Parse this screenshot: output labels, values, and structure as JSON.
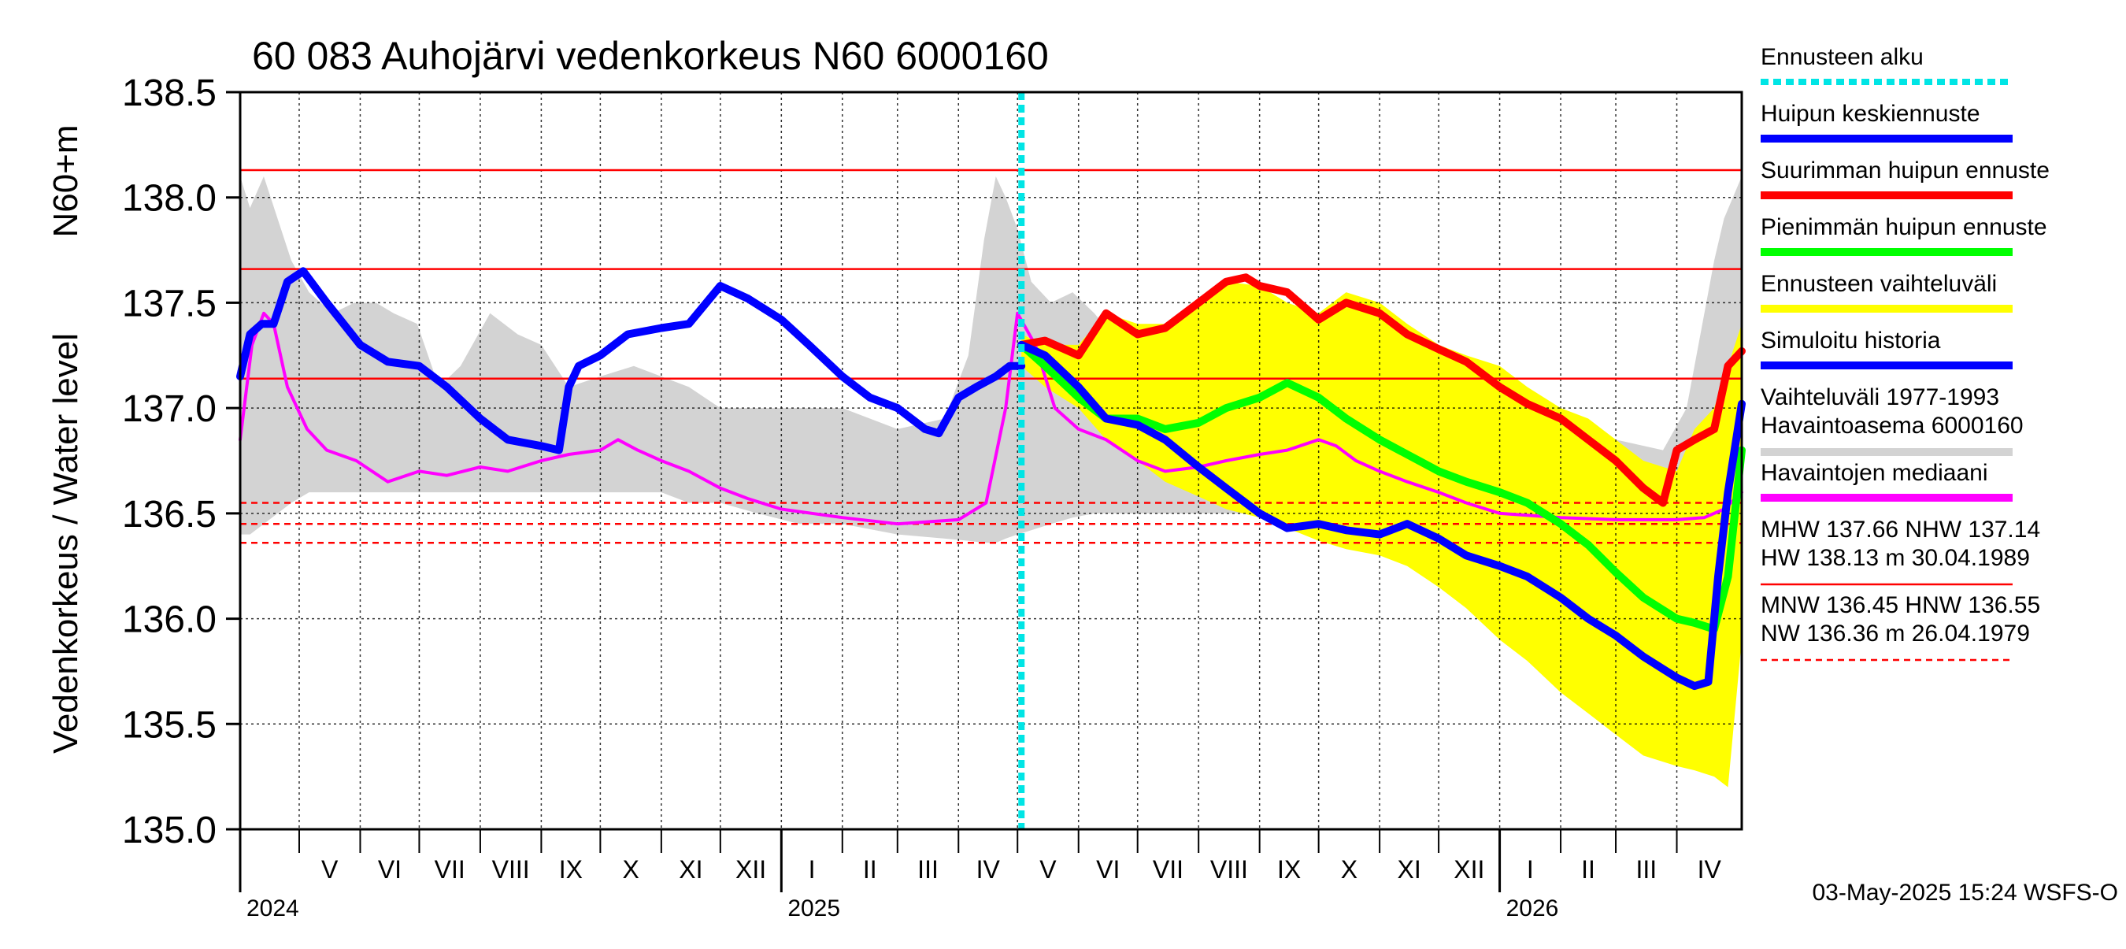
{
  "chart_data": {
    "type": "line",
    "title": "60 083 Auhojärvi vedenkorkeus N60 6000160",
    "ylabel_top": "N60+m",
    "ylabel": "Vedenkorkeus / Water level",
    "ylim": [
      135.0,
      138.5
    ],
    "yticks": [
      "135.0",
      "135.5",
      "136.0",
      "136.5",
      "137.0",
      "137.5",
      "138.0",
      "138.5"
    ],
    "grid": true,
    "legend_position": "right",
    "xlim": [
      "2024-04-01",
      "2026-05-04"
    ],
    "forecast_start": "2025-05-03",
    "months": [
      {
        "label": "V",
        "start": "2024-05-01"
      },
      {
        "label": "VI",
        "start": "2024-06-01"
      },
      {
        "label": "VII",
        "start": "2024-07-01"
      },
      {
        "label": "VIII",
        "start": "2024-08-01"
      },
      {
        "label": "IX",
        "start": "2024-09-01"
      },
      {
        "label": "X",
        "start": "2024-10-01"
      },
      {
        "label": "XI",
        "start": "2024-11-01"
      },
      {
        "label": "XII",
        "start": "2024-12-01"
      },
      {
        "label": "I",
        "start": "2025-01-01"
      },
      {
        "label": "II",
        "start": "2025-02-01"
      },
      {
        "label": "III",
        "start": "2025-03-01"
      },
      {
        "label": "IV",
        "start": "2025-04-01"
      },
      {
        "label": "V",
        "start": "2025-05-01"
      },
      {
        "label": "VI",
        "start": "2025-06-01"
      },
      {
        "label": "VII",
        "start": "2025-07-01"
      },
      {
        "label": "VIII",
        "start": "2025-08-01"
      },
      {
        "label": "IX",
        "start": "2025-09-01"
      },
      {
        "label": "X",
        "start": "2025-10-01"
      },
      {
        "label": "XI",
        "start": "2025-11-01"
      },
      {
        "label": "XII",
        "start": "2025-12-01"
      },
      {
        "label": "I",
        "start": "2026-01-01"
      },
      {
        "label": "II",
        "start": "2026-02-01"
      },
      {
        "label": "III",
        "start": "2026-03-01"
      },
      {
        "label": "IV",
        "start": "2026-04-01"
      }
    ],
    "years": [
      {
        "label": "2024",
        "date": "2024-04-01"
      },
      {
        "label": "2025",
        "date": "2025-01-01"
      },
      {
        "label": "2026",
        "date": "2026-01-01"
      }
    ],
    "reference_lines": [
      {
        "value": 138.13,
        "style": "solid",
        "color": "#ff0000"
      },
      {
        "value": 137.66,
        "style": "solid",
        "color": "#ff0000"
      },
      {
        "value": 137.14,
        "style": "solid",
        "color": "#ff0000"
      },
      {
        "value": 136.55,
        "style": "dashed",
        "color": "#ff0000"
      },
      {
        "value": 136.45,
        "style": "dashed",
        "color": "#ff0000"
      },
      {
        "value": 136.36,
        "style": "dashed",
        "color": "#ff0000"
      }
    ],
    "bands": [
      {
        "name": "Vaihteluväli 1977-1993",
        "color": "#d3d3d3",
        "x": [
          "2024-04-01",
          "2024-04-06",
          "2024-04-13",
          "2024-04-20",
          "2024-04-27",
          "2024-05-06",
          "2024-05-18",
          "2024-05-29",
          "2024-06-09",
          "2024-06-18",
          "2024-06-30",
          "2024-07-11",
          "2024-07-22",
          "2024-08-06",
          "2024-08-20",
          "2024-09-01",
          "2024-09-15",
          "2024-10-01",
          "2024-10-18",
          "2024-11-01",
          "2024-11-15",
          "2024-12-01",
          "2024-12-20",
          "2025-01-10",
          "2025-02-01",
          "2025-03-01",
          "2025-03-25",
          "2025-04-06",
          "2025-04-14",
          "2025-04-20",
          "2025-04-25",
          "2025-05-01",
          "2025-05-08",
          "2025-05-18",
          "2025-05-29",
          "2025-06-09",
          "2025-06-18",
          "2025-06-30",
          "2025-07-11",
          "2025-07-22",
          "2025-08-06",
          "2025-08-20",
          "2025-09-01",
          "2025-09-15",
          "2025-10-01",
          "2025-10-18",
          "2025-11-01",
          "2025-11-15",
          "2025-12-01",
          "2025-12-20",
          "2026-01-10",
          "2026-02-01",
          "2026-03-01",
          "2026-03-25",
          "2026-04-06",
          "2026-04-14",
          "2026-04-20",
          "2026-04-25",
          "2026-05-04"
        ],
        "upper": [
          138.1,
          137.95,
          138.1,
          137.9,
          137.7,
          137.55,
          137.45,
          137.5,
          137.5,
          137.45,
          137.4,
          137.1,
          137.2,
          137.45,
          137.35,
          137.3,
          137.1,
          137.15,
          137.2,
          137.15,
          137.1,
          137.0,
          137.0,
          137.0,
          137.0,
          136.9,
          136.95,
          137.25,
          137.8,
          138.1,
          138.0,
          137.85,
          137.6,
          137.5,
          137.55,
          137.45,
          137.35,
          137.35,
          137.0,
          137.15,
          137.4,
          137.3,
          137.25,
          137.1,
          137.15,
          137.15,
          137.1,
          137.05,
          137.0,
          136.95,
          136.95,
          136.9,
          136.85,
          136.8,
          137.0,
          137.4,
          137.7,
          137.9,
          138.1
        ],
        "lower": [
          136.4,
          136.4,
          136.45,
          136.5,
          136.55,
          136.6,
          136.6,
          136.6,
          136.6,
          136.6,
          136.6,
          136.6,
          136.6,
          136.6,
          136.6,
          136.6,
          136.6,
          136.6,
          136.6,
          136.6,
          136.55,
          136.55,
          136.5,
          136.45,
          136.45,
          136.4,
          136.38,
          136.37,
          136.36,
          136.36,
          136.38,
          136.4,
          136.42,
          136.45,
          136.48,
          136.5,
          136.5,
          136.5,
          136.5,
          136.5,
          136.5,
          136.5,
          136.5,
          136.5,
          136.5,
          136.5,
          136.5,
          136.5,
          136.45,
          136.45,
          136.45,
          136.42,
          136.38,
          136.37,
          136.36,
          136.36,
          136.36,
          136.36,
          136.4
        ]
      },
      {
        "name": "Ennusteen vaihteluväli",
        "color": "#ffff00",
        "x": [
          "2025-05-03",
          "2025-05-15",
          "2025-06-01",
          "2025-06-15",
          "2025-07-01",
          "2025-07-15",
          "2025-08-01",
          "2025-08-15",
          "2025-09-01",
          "2025-09-15",
          "2025-10-01",
          "2025-10-15",
          "2025-11-01",
          "2025-11-15",
          "2025-12-01",
          "2025-12-15",
          "2026-01-01",
          "2026-01-15",
          "2026-02-01",
          "2026-02-15",
          "2026-03-01",
          "2026-03-15",
          "2026-04-01",
          "2026-04-10",
          "2026-04-20",
          "2026-04-27",
          "2026-05-04"
        ],
        "upper": [
          137.35,
          137.3,
          137.3,
          137.45,
          137.4,
          137.4,
          137.5,
          137.6,
          137.58,
          137.5,
          137.45,
          137.55,
          137.5,
          137.4,
          137.3,
          137.25,
          137.2,
          137.1,
          137.0,
          136.95,
          136.85,
          136.75,
          136.7,
          136.9,
          137.0,
          137.2,
          137.4
        ],
        "lower": [
          137.2,
          137.1,
          137.0,
          136.85,
          136.75,
          136.65,
          136.58,
          136.52,
          136.48,
          136.43,
          136.37,
          136.33,
          136.3,
          136.25,
          136.15,
          136.05,
          135.9,
          135.8,
          135.65,
          135.55,
          135.45,
          135.35,
          135.3,
          135.28,
          135.25,
          135.2,
          135.9
        ]
      }
    ],
    "series": [
      {
        "name": "Havaintojen mediaani",
        "color": "#ff00ff",
        "width": 4,
        "x": [
          "2024-04-01",
          "2024-04-07",
          "2024-04-13",
          "2024-04-18",
          "2024-04-25",
          "2024-05-05",
          "2024-05-15",
          "2024-05-30",
          "2024-06-15",
          "2024-07-01",
          "2024-07-15",
          "2024-08-01",
          "2024-08-15",
          "2024-09-01",
          "2024-09-15",
          "2024-10-01",
          "2024-10-10",
          "2024-10-20",
          "2024-11-01",
          "2024-11-15",
          "2024-12-01",
          "2024-12-15",
          "2025-01-01",
          "2025-02-01",
          "2025-03-01",
          "2025-04-01",
          "2025-04-15",
          "2025-04-25",
          "2025-05-01",
          "2025-05-10",
          "2025-05-20",
          "2025-06-01",
          "2025-06-15",
          "2025-07-01",
          "2025-07-15",
          "2025-08-01",
          "2025-08-15",
          "2025-09-01",
          "2025-09-15",
          "2025-10-01",
          "2025-10-10",
          "2025-10-20",
          "2025-11-01",
          "2025-11-15",
          "2025-12-01",
          "2025-12-15",
          "2026-01-01",
          "2026-02-01",
          "2026-03-01",
          "2026-04-01",
          "2026-04-15",
          "2026-04-25",
          "2026-05-04"
        ],
        "values": [
          136.85,
          137.3,
          137.45,
          137.4,
          137.1,
          136.9,
          136.8,
          136.75,
          136.65,
          136.7,
          136.68,
          136.72,
          136.7,
          136.75,
          136.78,
          136.8,
          136.85,
          136.8,
          136.75,
          136.7,
          136.62,
          136.57,
          136.52,
          136.48,
          136.45,
          136.47,
          136.55,
          137.0,
          137.45,
          137.3,
          137.0,
          136.9,
          136.85,
          136.75,
          136.7,
          136.72,
          136.75,
          136.78,
          136.8,
          136.85,
          136.82,
          136.75,
          136.7,
          136.65,
          136.6,
          136.55,
          136.5,
          136.48,
          136.47,
          136.47,
          136.48,
          136.52,
          136.6
        ]
      },
      {
        "name": "Simuloitu historia",
        "color": "#0000ff",
        "width": 10,
        "x": [
          "2024-04-01",
          "2024-04-06",
          "2024-04-12",
          "2024-04-18",
          "2024-04-25",
          "2024-05-03",
          "2024-05-15",
          "2024-06-01",
          "2024-06-15",
          "2024-07-01",
          "2024-07-15",
          "2024-08-01",
          "2024-08-15",
          "2024-09-01",
          "2024-09-10",
          "2024-09-15",
          "2024-09-20",
          "2024-10-01",
          "2024-10-15",
          "2024-11-01",
          "2024-11-15",
          "2024-12-01",
          "2024-12-15",
          "2025-01-01",
          "2025-01-15",
          "2025-02-01",
          "2025-02-15",
          "2025-03-01",
          "2025-03-15",
          "2025-03-22",
          "2025-04-01",
          "2025-04-10",
          "2025-04-20",
          "2025-04-27",
          "2025-05-03"
        ],
        "values": [
          137.15,
          137.35,
          137.4,
          137.4,
          137.6,
          137.65,
          137.5,
          137.3,
          137.22,
          137.2,
          137.1,
          136.95,
          136.85,
          136.82,
          136.8,
          137.1,
          137.2,
          137.25,
          137.35,
          137.38,
          137.4,
          137.58,
          137.52,
          137.42,
          137.3,
          137.15,
          137.05,
          137.0,
          136.9,
          136.88,
          137.05,
          137.1,
          137.15,
          137.2,
          137.2
        ]
      },
      {
        "name": "Suurimman huipun ennuste",
        "color": "#ff0000",
        "width": 10,
        "x": [
          "2025-05-03",
          "2025-05-15",
          "2025-06-01",
          "2025-06-15",
          "2025-07-01",
          "2025-07-15",
          "2025-08-01",
          "2025-08-15",
          "2025-08-25",
          "2025-09-01",
          "2025-09-15",
          "2025-10-01",
          "2025-10-15",
          "2025-11-01",
          "2025-11-15",
          "2025-12-01",
          "2025-12-15",
          "2026-01-01",
          "2026-01-15",
          "2026-02-01",
          "2026-02-15",
          "2026-03-01",
          "2026-03-15",
          "2026-03-25",
          "2026-04-01",
          "2026-04-10",
          "2026-04-20",
          "2026-04-27",
          "2026-05-04"
        ],
        "values": [
          137.3,
          137.32,
          137.25,
          137.45,
          137.35,
          137.38,
          137.5,
          137.6,
          137.62,
          137.58,
          137.55,
          137.42,
          137.5,
          137.45,
          137.35,
          137.28,
          137.22,
          137.1,
          137.02,
          136.95,
          136.85,
          136.75,
          136.62,
          136.55,
          136.8,
          136.85,
          136.9,
          137.2,
          137.27
        ]
      },
      {
        "name": "Pienimmän huipun ennuste",
        "color": "#00ff00",
        "width": 10,
        "x": [
          "2025-05-03",
          "2025-05-15",
          "2025-06-01",
          "2025-06-15",
          "2025-07-01",
          "2025-07-15",
          "2025-08-01",
          "2025-08-15",
          "2025-09-01",
          "2025-09-15",
          "2025-10-01",
          "2025-10-15",
          "2025-11-01",
          "2025-11-15",
          "2025-12-01",
          "2025-12-15",
          "2026-01-01",
          "2026-01-15",
          "2026-02-01",
          "2026-02-15",
          "2026-03-01",
          "2026-03-15",
          "2026-04-01",
          "2026-04-10",
          "2026-04-20",
          "2026-04-27",
          "2026-05-04"
        ],
        "values": [
          137.3,
          137.2,
          137.05,
          136.95,
          136.95,
          136.9,
          136.93,
          137.0,
          137.05,
          137.12,
          137.05,
          136.95,
          136.85,
          136.78,
          136.7,
          136.65,
          136.6,
          136.55,
          136.45,
          136.35,
          136.22,
          136.1,
          136.0,
          135.98,
          135.95,
          136.2,
          136.8
        ]
      },
      {
        "name": "Huipun keskiennuste",
        "color": "#0000ff",
        "width": 10,
        "x": [
          "2025-05-03",
          "2025-05-15",
          "2025-06-01",
          "2025-06-15",
          "2025-07-01",
          "2025-07-15",
          "2025-08-01",
          "2025-08-15",
          "2025-09-01",
          "2025-09-15",
          "2025-10-01",
          "2025-10-15",
          "2025-11-01",
          "2025-11-15",
          "2025-12-01",
          "2025-12-15",
          "2026-01-01",
          "2026-01-15",
          "2026-02-01",
          "2026-02-15",
          "2026-03-01",
          "2026-03-15",
          "2026-04-01",
          "2026-04-10",
          "2026-04-17",
          "2026-04-22",
          "2026-04-27",
          "2026-05-04"
        ],
        "values": [
          137.3,
          137.25,
          137.1,
          136.95,
          136.92,
          136.85,
          136.72,
          136.62,
          136.5,
          136.43,
          136.45,
          136.42,
          136.4,
          136.45,
          136.38,
          136.3,
          136.25,
          136.2,
          136.1,
          136.0,
          135.92,
          135.82,
          135.72,
          135.68,
          135.7,
          136.2,
          136.6,
          137.02
        ]
      }
    ],
    "legend": [
      {
        "label": "Ennusteen alku",
        "color": "#00e5e5",
        "style": "dotted"
      },
      {
        "label": "Huipun keskiennuste",
        "color": "#0000ff",
        "style": "solid"
      },
      {
        "label": "Suurimman huipun ennuste",
        "color": "#ff0000",
        "style": "solid"
      },
      {
        "label": "Pienimmän huipun ennuste",
        "color": "#00ff00",
        "style": "solid"
      },
      {
        "label": "Ennusteen vaihteluväli",
        "color": "#ffff00",
        "style": "solid"
      },
      {
        "label": "Simuloitu historia",
        "color": "#0000ff",
        "style": "solid"
      },
      {
        "label": "Vaihteluväli 1977-1993",
        "label2": " Havaintoasema 6000160",
        "color": "#d3d3d3",
        "style": "solid"
      },
      {
        "label": "Havaintojen mediaani",
        "color": "#ff00ff",
        "style": "solid"
      },
      {
        "label": "MHW 137.66 NHW 137.14",
        "label2": "HW 138.13 m 30.04.1989",
        "color": "#ff0000",
        "style": "thin"
      },
      {
        "label": "MNW 136.45 HNW 136.55",
        "label2": "NW 136.36 m 26.04.1979",
        "color": "#ff0000",
        "style": "thin-dashed"
      }
    ],
    "footer": "03-May-2025 15:24 WSFS-O"
  }
}
